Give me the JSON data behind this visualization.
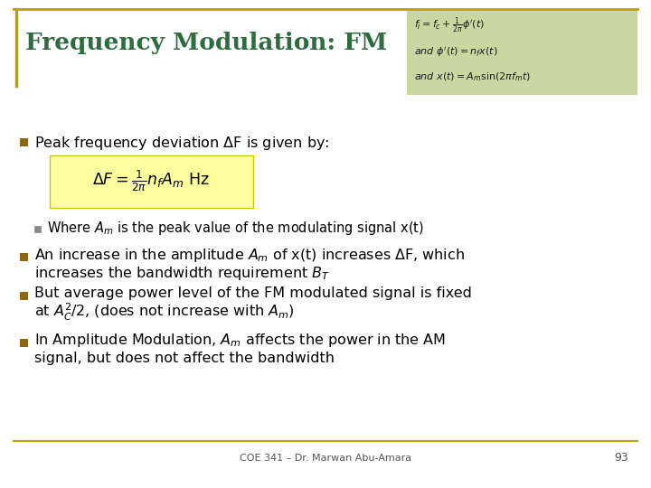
{
  "title": "Frequency Modulation: FM",
  "title_color": "#2E6B3E",
  "title_fontsize": 19,
  "bg_color": "#FFFFFF",
  "header_box_color": "#C8D8A0",
  "header_border_color": "#B8A000",
  "formula_box_color": "#FFFFA0",
  "formula_box_border": "#C8C800",
  "bullet_color": "#8B6914",
  "sub_bullet_color": "#888888",
  "text_color": "#000000",
  "footer_text": "COE 341 – Dr. Marwan Abu-Amara",
  "footer_page": "93",
  "footer_color": "#555555",
  "top_eq1": "$f_i = f_c + \\frac{1}{2\\pi}\\phi'(t)$",
  "top_eq2": "$and\\ \\phi'(t) = n_f x(t)$",
  "top_eq3": "$and\\ x(t) = A_m \\sin(2\\pi f_m t)$",
  "main_formula": "$\\Delta F = \\frac{1}{2\\pi} n_f A_m \\ \\mathrm{Hz}$",
  "bullet1": "Peak frequency deviation $\\Delta$F is given by:",
  "sub_bullet1": "Where $A_m$ is the peak value of the modulating signal x(t)",
  "bullet2_line1": "An increase in the amplitude $A_m$ of x(t) increases $\\Delta$F, which",
  "bullet2_line2": "increases the bandwidth requirement $B_T$",
  "bullet3_line1": "But average power level of the FM modulated signal is fixed",
  "bullet3_line2": "at $A_C^2$/2, (does not increase with $A_m$)",
  "bullet4_line1": "In Amplitude Modulation, $A_m$ affects the power in the AM",
  "bullet4_line2": "signal, but does not affect the bandwidth",
  "text_fontsize": 11.5,
  "sub_text_fontsize": 10.5
}
